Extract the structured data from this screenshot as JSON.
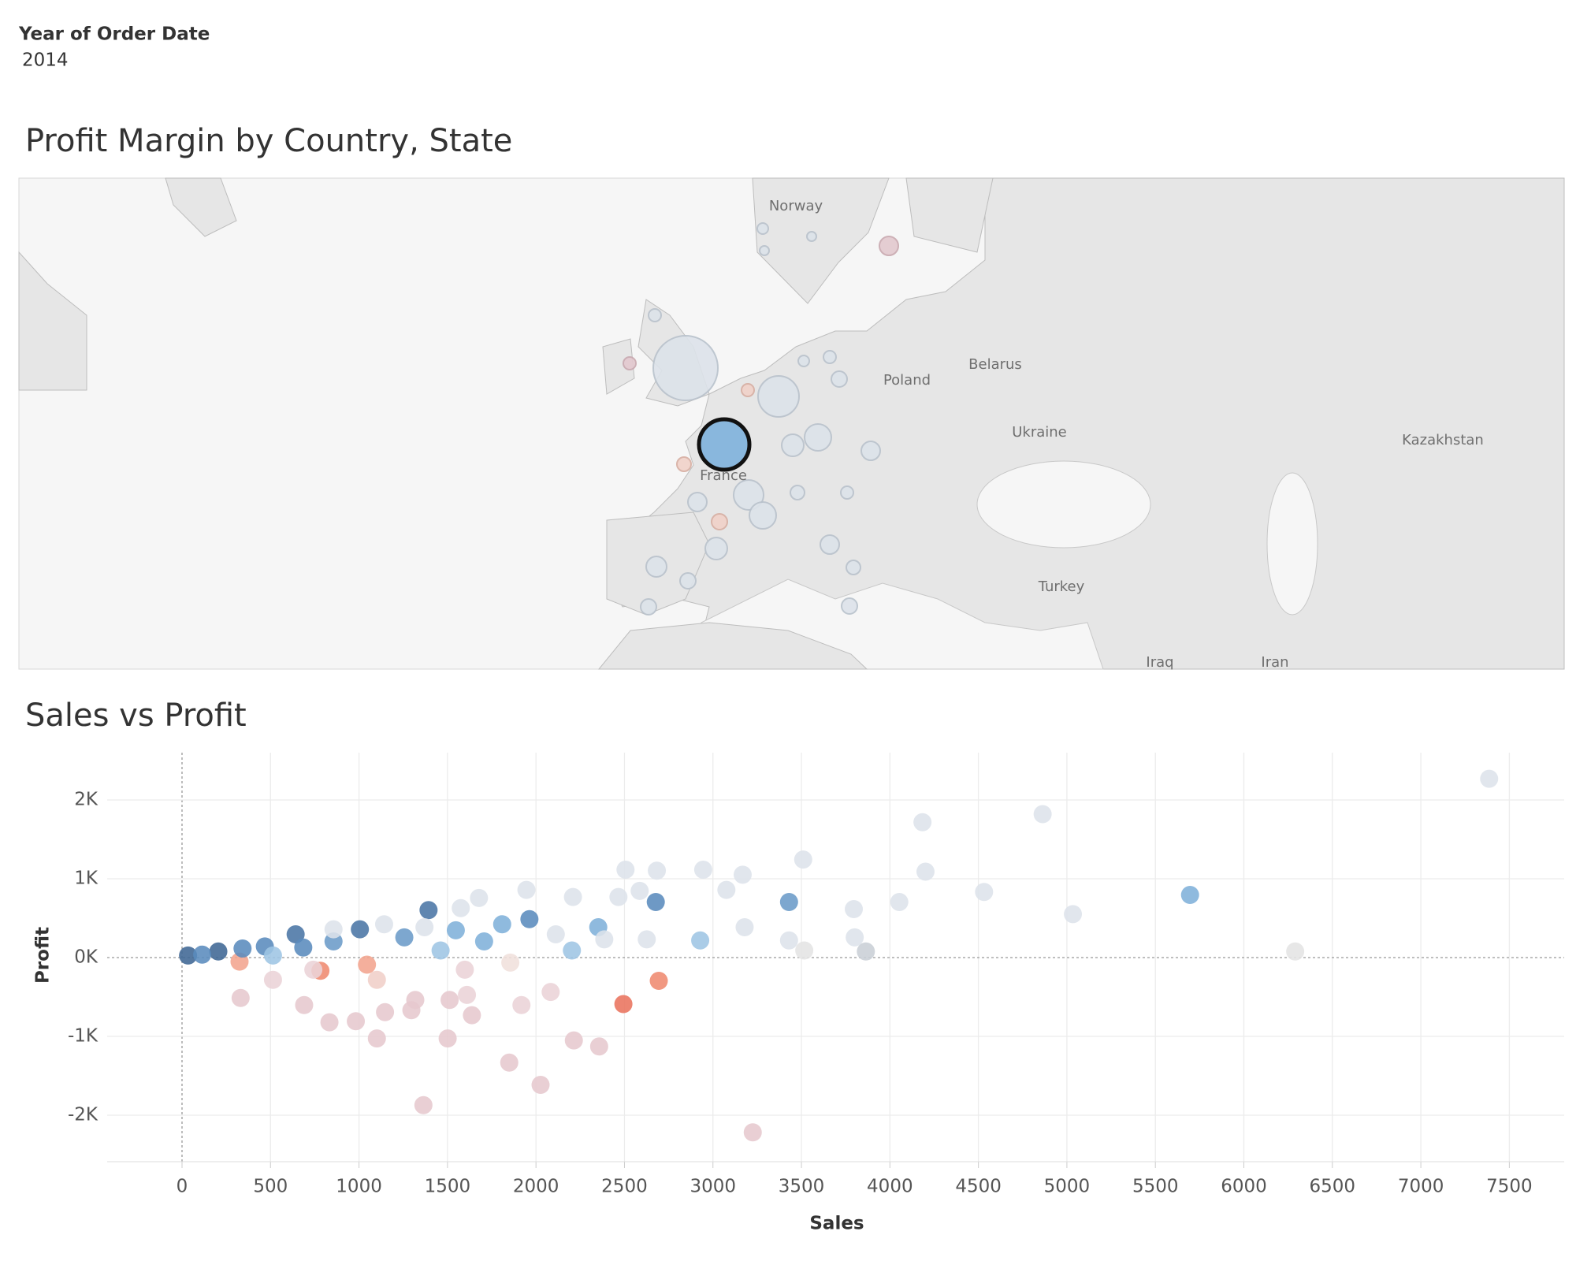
{
  "filter": {
    "label": "Year of Order Date",
    "value": "2014"
  },
  "chart_data": [
    {
      "type": "map",
      "title": "Profit Margin by Country, State",
      "labels": [
        "Norway",
        "Poland",
        "Belarus",
        "Ukraine",
        "Kazakhstan",
        "France",
        "Turkey",
        "Iraq",
        "Iran"
      ]
    },
    {
      "type": "scatter",
      "title": "Sales vs Profit",
      "x_label": "Sales",
      "y_label": "Profit",
      "xlim": [
        -423,
        7810
      ],
      "ylim": [
        -2590,
        2600
      ],
      "xticks": [
        0,
        500,
        1000,
        1500,
        2000,
        2500,
        3000,
        3500,
        4000,
        4500,
        5000,
        5500,
        6000,
        6500,
        7000,
        7500
      ],
      "yticks": [
        {
          "value": -2000,
          "label": "-2K"
        },
        {
          "value": -1000,
          "label": "-1K"
        },
        {
          "value": 0,
          "label": "0K"
        },
        {
          "value": 1000,
          "label": "1K"
        },
        {
          "value": 2000,
          "label": "2K"
        }
      ],
      "grid": true,
      "x": [
        7386,
        4863,
        4184,
        3510,
        4201,
        2945,
        3168,
        2683,
        2506,
        4532,
        5696,
        5034,
        4053,
        3796,
        3430,
        3076,
        2677,
        2586,
        2352,
        1963,
        1809,
        1393,
        1005,
        642,
        205,
        34,
        6290,
        3864,
        2928,
        2203,
        1461,
        2694,
        2494,
        782,
        1045,
        325,
        2083,
        1918,
        1638,
        1501,
        1101,
        1849,
        2026,
        2214,
        2357,
        1364,
        3225,
        982,
        833,
        1147,
        1318,
        1512,
        331,
        690,
        1101,
        1610,
        1296,
        3801,
        3430,
        3516,
        3179,
        2466,
        2209,
        1946,
        1678,
        1575,
        1547,
        1707,
        1256,
        856,
        468,
        342,
        685,
        114,
        742,
        514,
        1598,
        1855,
        1370,
        1142,
        856,
        2386,
        2626,
        2112,
        514
      ],
      "values": [
        2269,
        1820,
        1718,
        1244,
        1090,
        1115,
        1051,
        1103,
        1115,
        833,
        795,
        551,
        705,
        615,
        705,
        859,
        705,
        846,
        385,
        487,
        423,
        603,
        359,
        295,
        77,
        26,
        77,
        77,
        218,
        90,
        90,
        -295,
        -590,
        -167,
        -90,
        -51,
        -436,
        -603,
        -731,
        -1026,
        -1026,
        -1333,
        -1615,
        -1051,
        -1128,
        -1872,
        -2218,
        -808,
        -821,
        -692,
        -538,
        -538,
        -513,
        -603,
        -282,
        -474,
        -667,
        256,
        218,
        90,
        385,
        769,
        769,
        859,
        756,
        628,
        346,
        205,
        256,
        205,
        141,
        115,
        128,
        38,
        -154,
        -282,
        -154,
        -64,
        385,
        423,
        359,
        231,
        231,
        295,
        26
      ],
      "colors": [
        "#dde3ea",
        "#dde3ea",
        "#dde3ea",
        "#dde3ea",
        "#dde3ea",
        "#dde3ea",
        "#dde3ea",
        "#dde3ea",
        "#dde3ea",
        "#dde3ea",
        "#7fb0da",
        "#dde3ea",
        "#dde3ea",
        "#dde3ea",
        "#6b9bc8",
        "#dde3ea",
        "#5a8bbd",
        "#dde3ea",
        "#7fb0da",
        "#5a8bbd",
        "#7fb0da",
        "#4a75a5",
        "#4a75a5",
        "#4a75a5",
        "#3f6794",
        "#3f6794",
        "#e4e4e4",
        "#c9cfd6",
        "#9ec5e4",
        "#9ec5e4",
        "#9ec5e4",
        "#ef8a70",
        "#e9735d",
        "#ef8a70",
        "#f2a48e",
        "#f2a48e",
        "#ead3d7",
        "#ead3d7",
        "#e6c8ce",
        "#e6c8ce",
        "#e6c8ce",
        "#e6c8ce",
        "#e6c8ce",
        "#e6c8ce",
        "#e6c8ce",
        "#e6c8ce",
        "#e6c8ce",
        "#e6c8ce",
        "#e6c8ce",
        "#e6c8ce",
        "#e6c8ce",
        "#e6c8ce",
        "#e6c8ce",
        "#e6c8ce",
        "#f0cfc8",
        "#ead3d7",
        "#e6c8ce",
        "#dde3ea",
        "#dde3ea",
        "#e4e4e4",
        "#dde3ea",
        "#dde3ea",
        "#dde3ea",
        "#dde3ea",
        "#dde3ea",
        "#dde3ea",
        "#7fb0da",
        "#7fb0da",
        "#6b9bc8",
        "#6b9bc8",
        "#5a8bbd",
        "#5a8bbd",
        "#5a8bbd",
        "#5a8bbd",
        "#ead3d7",
        "#ead3d7",
        "#ead3d7",
        "#f0e0dc",
        "#dde3ea",
        "#dde3ea",
        "#dde3ea",
        "#dde3ea",
        "#dde3ea",
        "#dde3ea",
        "#9ec5e4"
      ]
    }
  ]
}
